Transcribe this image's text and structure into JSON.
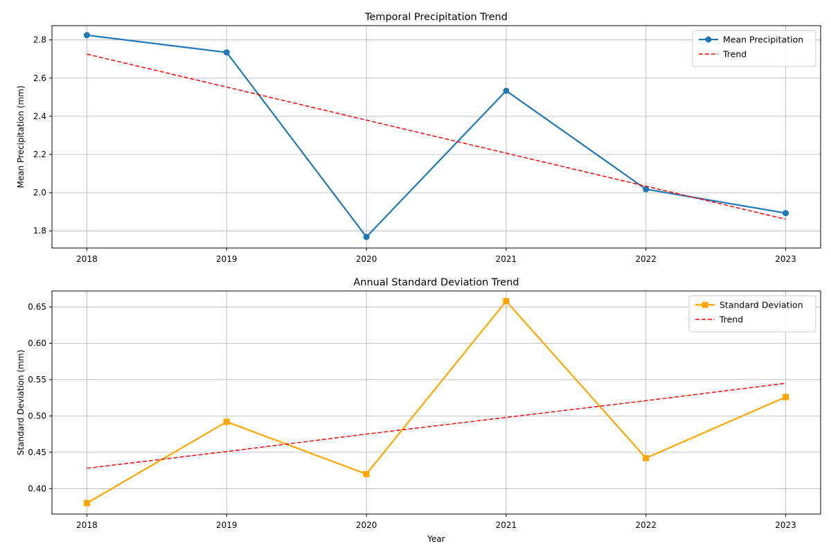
{
  "figure": {
    "xlabel": "Year"
  },
  "chart_data": [
    {
      "type": "line",
      "title": "Temporal Precipitation Trend",
      "xlabel": "",
      "ylabel": "Mean Precipitation (mm)",
      "x": [
        2018,
        2019,
        2020,
        2021,
        2022,
        2023
      ],
      "xlim": [
        2017.75,
        2023.25
      ],
      "ylim": [
        1.71,
        2.875
      ],
      "yticks": [
        1.8,
        2.0,
        2.2,
        2.4,
        2.6,
        2.8
      ],
      "ytick_labels": [
        "1.8",
        "2.0",
        "2.2",
        "2.4",
        "2.6",
        "2.8"
      ],
      "grid": true,
      "legend_position": "top-right",
      "series": [
        {
          "name": "Mean Precipitation",
          "values": [
            2.825,
            2.735,
            1.768,
            2.534,
            2.018,
            1.893
          ],
          "color": "#1f77b4",
          "marker": "circle",
          "style": "solid"
        },
        {
          "name": "Trend",
          "values": [
            2.726,
            2.553,
            2.38,
            2.207,
            2.034,
            1.861
          ],
          "color": "#ff0000",
          "marker": "none",
          "style": "dashed"
        }
      ]
    },
    {
      "type": "line",
      "title": "Annual Standard Deviation Trend",
      "xlabel": "Year",
      "ylabel": "Standard Deviation (mm)",
      "x": [
        2018,
        2019,
        2020,
        2021,
        2022,
        2023
      ],
      "xlim": [
        2017.75,
        2023.25
      ],
      "ylim": [
        0.365,
        0.672
      ],
      "yticks": [
        0.4,
        0.45,
        0.5,
        0.55,
        0.6,
        0.65
      ],
      "ytick_labels": [
        "0.40",
        "0.45",
        "0.50",
        "0.55",
        "0.60",
        "0.65"
      ],
      "grid": true,
      "legend_position": "top-right",
      "series": [
        {
          "name": "Standard Deviation",
          "values": [
            0.38,
            0.492,
            0.42,
            0.658,
            0.442,
            0.526
          ],
          "color": "#ffa500",
          "marker": "square",
          "style": "solid"
        },
        {
          "name": "Trend",
          "values": [
            0.428,
            0.451,
            0.475,
            0.498,
            0.521,
            0.545
          ],
          "color": "#ff0000",
          "marker": "none",
          "style": "dashed"
        }
      ]
    }
  ]
}
